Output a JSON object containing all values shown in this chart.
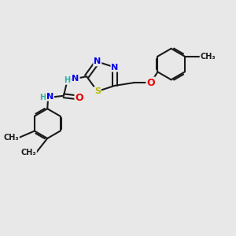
{
  "bg_color": "#e8e8e8",
  "bond_color": "#1a1a1a",
  "bond_width": 1.5,
  "atom_colors": {
    "N": "#0000ee",
    "S": "#b8b800",
    "O": "#ee0000",
    "C": "#1a1a1a",
    "H": "#2ab0b0"
  },
  "font_size": 8,
  "fig_size": [
    3.0,
    3.0
  ],
  "dpi": 100,
  "xlim": [
    -2.5,
    3.5
  ],
  "ylim": [
    -2.8,
    2.0
  ]
}
